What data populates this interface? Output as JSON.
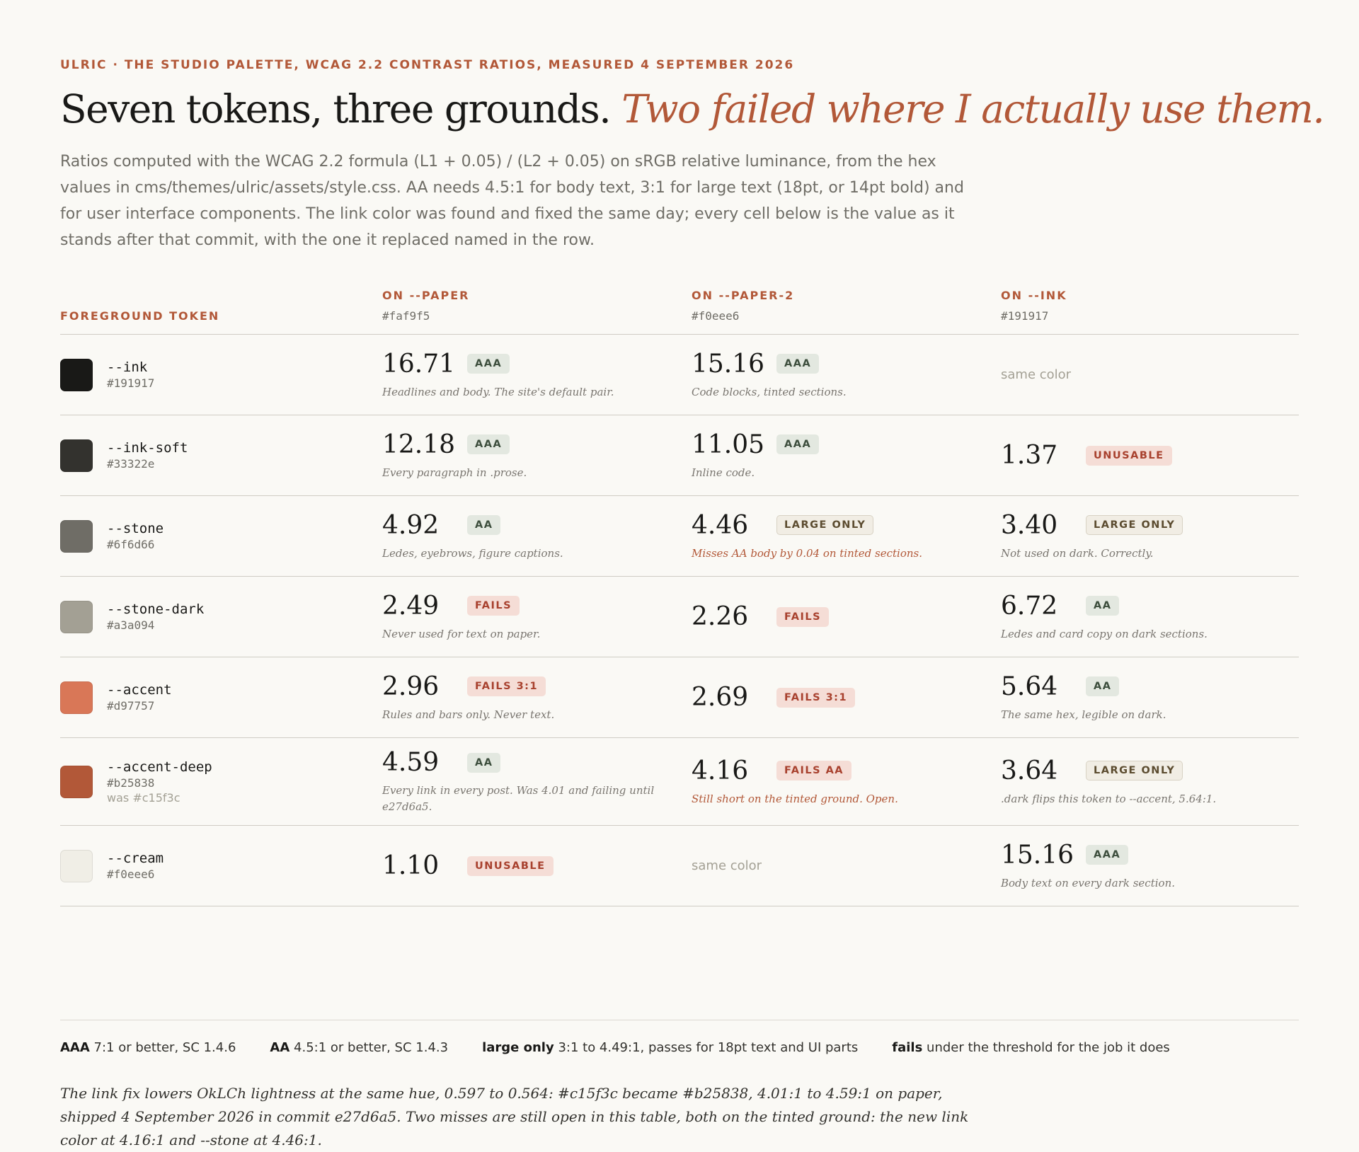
{
  "header": {
    "eyebrow": "ULRIC · THE STUDIO PALETTE, WCAG 2.2 CONTRAST RATIOS, MEASURED 4 SEPTEMBER 2026",
    "title": "Seven tokens, three grounds.",
    "title_emphasis": "Two failed where I actually use them.",
    "lede": "Ratios computed with the WCAG 2.2 formula (L1 + 0.05) / (L2 + 0.05) on sRGB relative luminance, from the hex values in cms/themes/ulric/assets/style.css. AA needs 4.5:1 for body text, 3:1 for large text (18pt, or 14pt bold) and for user interface components. The link color was found and fixed the same day; every cell below is the value as it stands after that commit, with the one it replaced named in the row."
  },
  "table": {
    "columns": [
      {
        "label": "FOREGROUND TOKEN"
      },
      {
        "label": "ON --PAPER",
        "hex": "#faf9f5"
      },
      {
        "label": "ON --PAPER-2",
        "hex": "#f0eee6"
      },
      {
        "label": "ON --INK",
        "hex": "#191917"
      }
    ],
    "rows": [
      {
        "token": "--ink",
        "hex": "#191917",
        "cells": [
          {
            "ratio": "16.71",
            "badge": "AAA",
            "tone": "pass",
            "note": "Headlines and body. The site's default pair."
          },
          {
            "ratio": "15.16",
            "badge": "AAA",
            "tone": "pass",
            "note": "Code blocks, tinted sections."
          },
          {
            "same": "same color"
          }
        ]
      },
      {
        "token": "--ink-soft",
        "hex": "#33322e",
        "cells": [
          {
            "ratio": "12.18",
            "badge": "AAA",
            "tone": "pass",
            "note": "Every paragraph in .prose."
          },
          {
            "ratio": "11.05",
            "badge": "AAA",
            "tone": "pass",
            "note": "Inline code."
          },
          {
            "ratio": "1.37",
            "badge": "UNUSABLE",
            "tone": "fail"
          }
        ]
      },
      {
        "token": "--stone",
        "hex": "#6f6d66",
        "cells": [
          {
            "ratio": "4.92",
            "badge": "AA",
            "tone": "pass",
            "note": "Ledes, eyebrows, figure captions."
          },
          {
            "ratio": "4.46",
            "badge": "LARGE ONLY",
            "tone": "large",
            "note": "Misses AA body by 0.04 on tinted sections.",
            "note_tone": "alert"
          },
          {
            "ratio": "3.40",
            "badge": "LARGE ONLY",
            "tone": "large",
            "note": "Not used on dark. Correctly."
          }
        ]
      },
      {
        "token": "--stone-dark",
        "hex": "#a3a094",
        "cells": [
          {
            "ratio": "2.49",
            "badge": "FAILS",
            "tone": "fail",
            "note": "Never used for text on paper."
          },
          {
            "ratio": "2.26",
            "badge": "FAILS",
            "tone": "fail"
          },
          {
            "ratio": "6.72",
            "badge": "AA",
            "tone": "pass",
            "note": "Ledes and card copy on dark sections."
          }
        ]
      },
      {
        "token": "--accent",
        "hex": "#d97757",
        "cells": [
          {
            "ratio": "2.96",
            "badge": "FAILS 3:1",
            "tone": "fail",
            "note": "Rules and bars only. Never text."
          },
          {
            "ratio": "2.69",
            "badge": "FAILS 3:1",
            "tone": "fail"
          },
          {
            "ratio": "5.64",
            "badge": "AA",
            "tone": "pass",
            "note": "The same hex, legible on dark."
          }
        ]
      },
      {
        "token": "--accent-deep",
        "hex": "#b25838",
        "was": "was #c15f3c",
        "cells": [
          {
            "ratio": "4.59",
            "badge": "AA",
            "tone": "pass",
            "note": "Every link in every post. Was 4.01 and failing until e27d6a5."
          },
          {
            "ratio": "4.16",
            "badge": "FAILS AA",
            "tone": "fail",
            "note": "Still short on the tinted ground. Open.",
            "note_tone": "alert"
          },
          {
            "ratio": "3.64",
            "badge": "LARGE ONLY",
            "tone": "large",
            "note": ".dark flips this token to --accent, 5.64:1."
          }
        ]
      },
      {
        "token": "--cream",
        "hex": "#f0eee6",
        "cells": [
          {
            "ratio": "1.10",
            "badge": "UNUSABLE",
            "tone": "fail"
          },
          {
            "same": "same color"
          },
          {
            "ratio": "15.16",
            "badge": "AAA",
            "tone": "pass",
            "note": "Body text on every dark section."
          }
        ]
      }
    ]
  },
  "legend": [
    {
      "term": "AAA",
      "desc": "7:1 or better, SC 1.4.6"
    },
    {
      "term": "AA",
      "desc": "4.5:1 or better, SC 1.4.3"
    },
    {
      "term": "large only",
      "desc": "3:1 to 4.49:1, passes for 18pt text and UI parts"
    },
    {
      "term": "fails",
      "desc": "under the threshold for the job it does"
    }
  ],
  "footnote": "The link fix lowers OkLCh lightness at the same hue, 0.597 to 0.564: #c15f3c became #b25838, 4.01:1 to 4.59:1 on paper, shipped 4 September 2026 in commit e27d6a5. Two misses are still open in this table, both on the tinted ground: the new link color at 4.16:1 and --stone at 4.46:1."
}
